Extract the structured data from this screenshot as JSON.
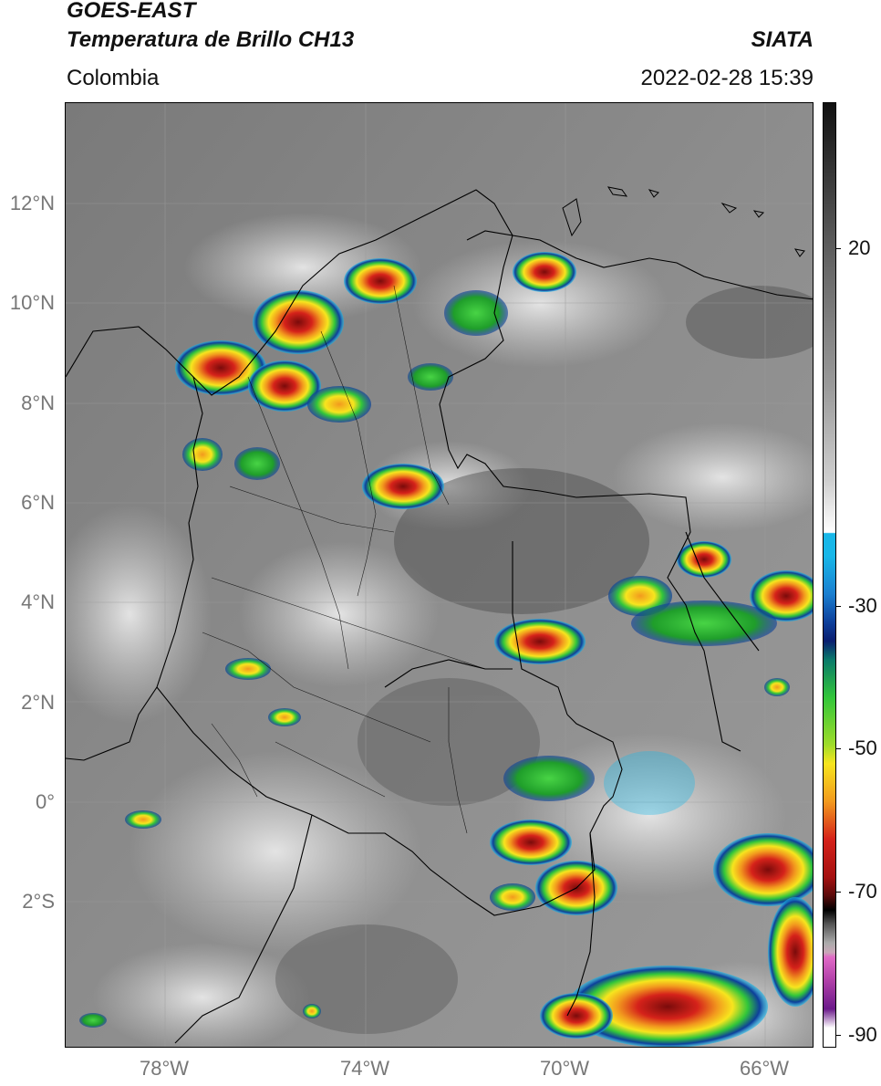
{
  "header": {
    "satellite": "GOES-EAST",
    "product": "Temperatura de Brillo CH13",
    "region": "Colombia",
    "source": "SIATA",
    "datetime": "2022-02-28 15:39"
  },
  "map": {
    "lat_labels": [
      "12°N",
      "10°N",
      "8°N",
      "6°N",
      "4°N",
      "2°N",
      "0°",
      "2°S"
    ],
    "lon_labels": [
      "78°W",
      "74°W",
      "70°W",
      "66°W"
    ]
  },
  "colorbar": {
    "tick_labels": [
      "20",
      "-30",
      "-50",
      "-70",
      "-90"
    ],
    "colors": {
      "white": "#ffffff",
      "cyan": "#18b7e8",
      "blue": "#0d3f9b",
      "navy": "#0a1e70",
      "green": "#32c63a",
      "yellow": "#f7e51e",
      "orange": "#f29a1e",
      "red": "#d5221a",
      "darkred": "#5a0a0a",
      "black": "#000000",
      "pink": "#e06ac6",
      "purple": "#6b1a8a"
    }
  }
}
